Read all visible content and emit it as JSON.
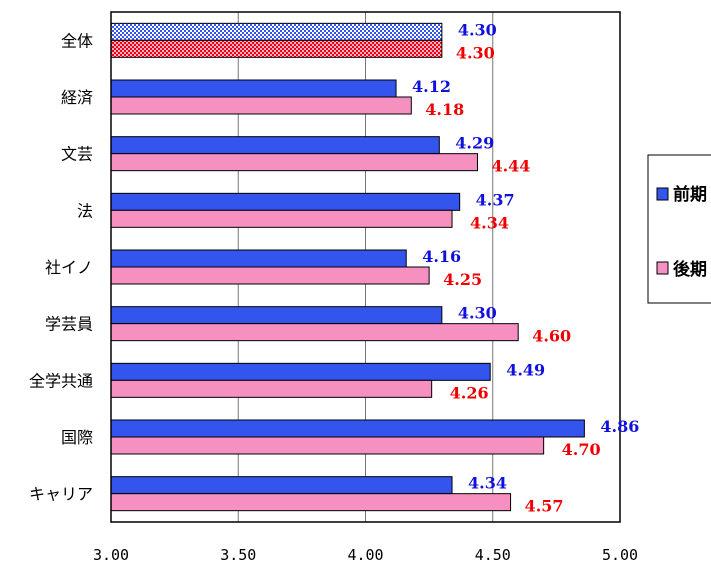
{
  "chart_data": {
    "type": "bar",
    "orientation": "horizontal",
    "categories": [
      "全体",
      "経済",
      "文芸",
      "法",
      "社イノ",
      "学芸員",
      "全学共通",
      "国際",
      "キャリア"
    ],
    "series": [
      {
        "name": "前期",
        "color": "#3355ee",
        "label_color": "#1111dd",
        "values": [
          4.3,
          4.12,
          4.29,
          4.37,
          4.16,
          4.3,
          4.49,
          4.86,
          4.34
        ],
        "labels": [
          "4.30",
          "4.12",
          "4.29",
          "4.37",
          "4.16",
          "4.30",
          "4.49",
          "4.86",
          "4.34"
        ]
      },
      {
        "name": "後期",
        "color": "#f590c0",
        "label_color": "#ee0000",
        "values": [
          4.3,
          4.18,
          4.44,
          4.34,
          4.25,
          4.6,
          4.26,
          4.7,
          4.57
        ],
        "labels": [
          "4.30",
          "4.18",
          "4.44",
          "4.34",
          "4.25",
          "4.60",
          "4.26",
          "4.70",
          "4.57"
        ]
      }
    ],
    "highlight_first_category_pattern": true,
    "xlim": [
      3.0,
      5.0
    ],
    "xticks": [
      "3.00",
      "3.50",
      "4.00",
      "4.50",
      "5.00"
    ],
    "grid": "vertical",
    "legend": {
      "placement": "right",
      "entries": [
        "前期",
        "後期"
      ]
    }
  }
}
